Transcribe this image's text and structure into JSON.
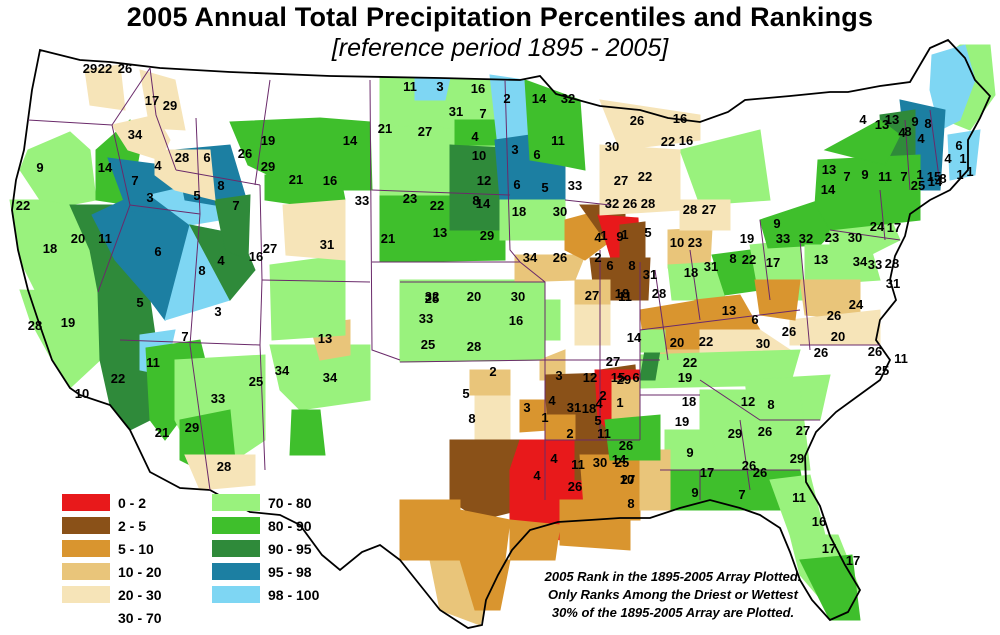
{
  "title": "2005 Annual Total Precipitation Percentiles and Rankings",
  "subtitle": "[reference period 1895 - 2005]",
  "legend": [
    {
      "label": "0 - 2",
      "color": "#e8191b"
    },
    {
      "label": "2 - 5",
      "color": "#8a5118"
    },
    {
      "label": "5 - 10",
      "color": "#d9952f"
    },
    {
      "label": "10 - 20",
      "color": "#e9c57a"
    },
    {
      "label": "20 - 30",
      "color": "#f6e4b8"
    },
    {
      "label": "30 - 70",
      "color": "#ffffff"
    },
    {
      "label": "70 - 80",
      "color": "#99f27d"
    },
    {
      "label": "80 - 90",
      "color": "#3fbf2c"
    },
    {
      "label": "90 - 95",
      "color": "#2f8a3a"
    },
    {
      "label": "95 - 98",
      "color": "#1c7fa2"
    },
    {
      "label": "98 - 100",
      "color": "#7ed6f3"
    }
  ],
  "note": [
    "2005 Rank in the 1895-2005 Array Plotted.",
    "Only Ranks Among the Driest or Wettest",
    "30% of the 1895-2005 Array are Plotted."
  ],
  "colors": {
    "land": "#ffffff",
    "state_border": "#6a2a6a",
    "nation_border": "#000000"
  },
  "map_data": {
    "ranks": [
      "29",
      "22",
      "26",
      "17",
      "29",
      "34",
      "28",
      "6",
      "4",
      "3",
      "5",
      "8",
      "7",
      "9",
      "14",
      "7",
      "26",
      "19",
      "14",
      "21",
      "16",
      "29",
      "33",
      "22",
      "20",
      "11",
      "18",
      "6",
      "8",
      "4",
      "16",
      "5",
      "3",
      "28",
      "19",
      "7",
      "11",
      "22",
      "10",
      "21",
      "33",
      "29",
      "25",
      "34",
      "34",
      "13",
      "31",
      "21",
      "13",
      "28",
      "27",
      "3",
      "16",
      "11",
      "21",
      "27",
      "31",
      "7",
      "2",
      "14",
      "32",
      "4",
      "3",
      "6",
      "11",
      "10",
      "12",
      "8",
      "6",
      "5",
      "33",
      "23",
      "22",
      "14",
      "29",
      "18",
      "30",
      "25",
      "33",
      "32",
      "20",
      "30",
      "16",
      "28",
      "25",
      "4",
      "1",
      "5",
      "6",
      "8",
      "18",
      "28",
      "27",
      "14",
      "11",
      "34",
      "26",
      "2",
      "1",
      "9",
      "4",
      "1",
      "1",
      "1",
      "26",
      "16",
      "22",
      "16",
      "30",
      "27",
      "22",
      "32",
      "26",
      "28",
      "28",
      "27",
      "10",
      "23",
      "31",
      "18",
      "31",
      "8",
      "22",
      "17",
      "19",
      "9",
      "33",
      "32",
      "23",
      "30",
      "13",
      "24",
      "17",
      "34",
      "33",
      "28",
      "31",
      "13",
      "6",
      "24",
      "26",
      "26",
      "22",
      "20",
      "30",
      "20",
      "26",
      "26",
      "11",
      "25",
      "13",
      "14",
      "7",
      "9",
      "4",
      "13",
      "13",
      "9",
      "8",
      "8",
      "11",
      "7",
      "4",
      "4",
      "1",
      "15",
      "25",
      "14",
      "8",
      "6",
      "2",
      "5",
      "8",
      "3",
      "3",
      "4",
      "1",
      "12",
      "31",
      "18",
      "15",
      "27",
      "29",
      "6",
      "2",
      "4",
      "11",
      "5",
      "2",
      "1",
      "4",
      "4",
      "11",
      "26",
      "30",
      "14",
      "26",
      "19",
      "22",
      "18",
      "19",
      "26",
      "26",
      "9",
      "17",
      "29",
      "27",
      "8",
      "12",
      "29",
      "26",
      "9",
      "7",
      "11",
      "16",
      "17",
      "17",
      "10",
      "25",
      "27",
      "8"
    ]
  }
}
